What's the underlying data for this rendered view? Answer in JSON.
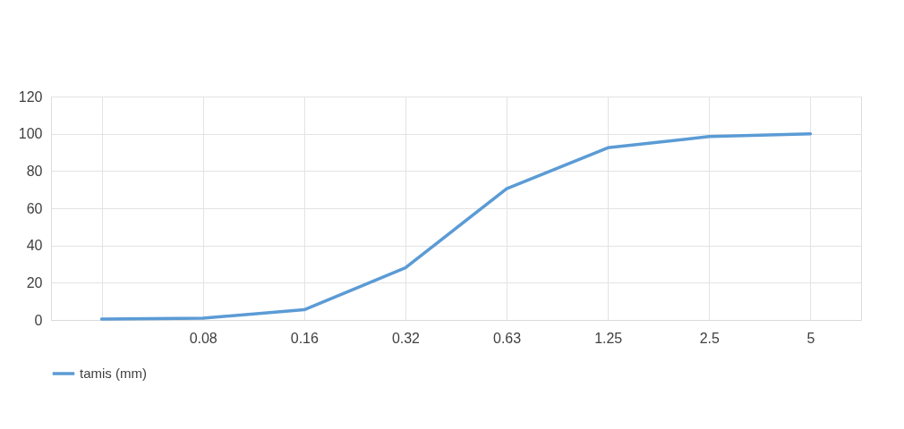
{
  "chart_data": {
    "type": "line",
    "categories": [
      null,
      "0.08",
      "0.16",
      "0.32",
      "0.63",
      "1.25",
      "2.5",
      "5"
    ],
    "series": [
      {
        "name": "tamis (mm)",
        "color": "#5b9bd5",
        "values": [
          0.5,
          1,
          5.5,
          28,
          70.5,
          92.5,
          98.5,
          100
        ]
      }
    ],
    "ylim": [
      0,
      120
    ],
    "yticks": [
      0,
      20,
      40,
      60,
      80,
      100,
      120
    ],
    "grid": true,
    "legend": "bottom",
    "marker": "none",
    "line_style": "solid"
  }
}
